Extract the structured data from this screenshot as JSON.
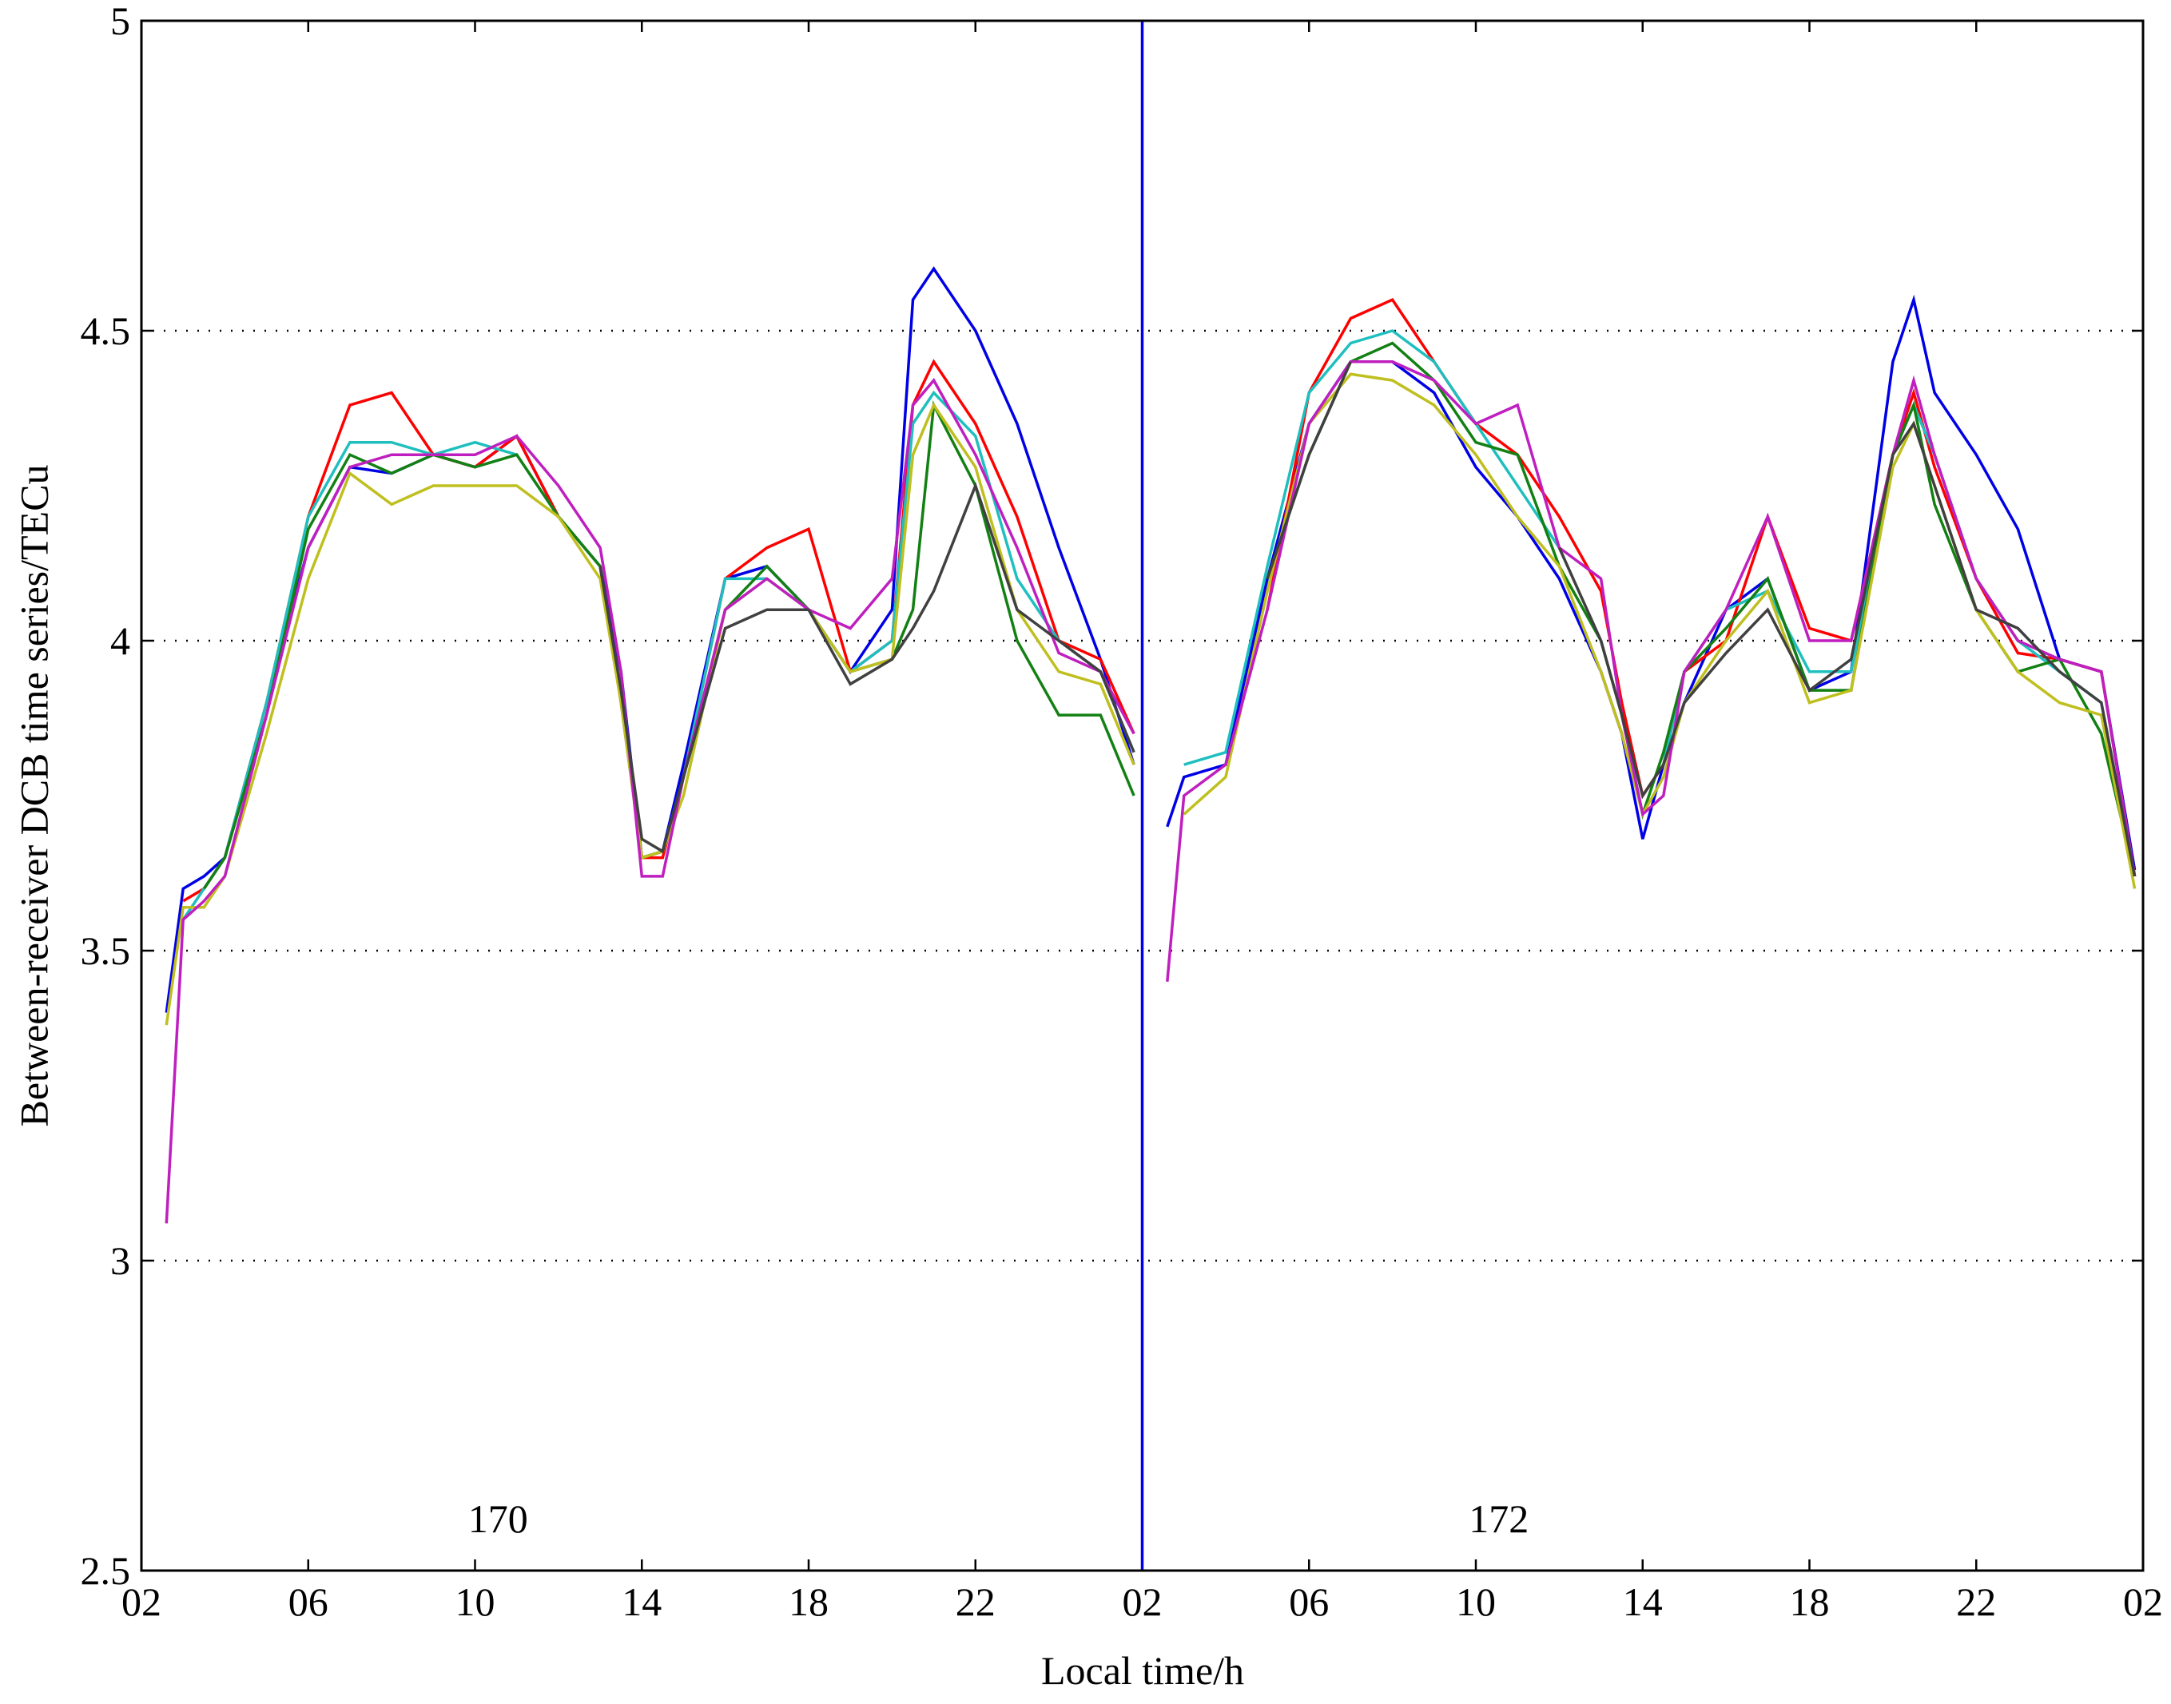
{
  "chart_data": {
    "type": "line",
    "x_label": "Local time/h",
    "y_label": "Between-receiver DCB time series/TECu",
    "annotations": [
      "170",
      "172"
    ],
    "xlim": [
      0,
      48
    ],
    "ylim": [
      2.5,
      5
    ],
    "xticks": [
      {
        "value": 0,
        "label": "02"
      },
      {
        "value": 4,
        "label": "06"
      },
      {
        "value": 8,
        "label": "10"
      },
      {
        "value": 12,
        "label": "14"
      },
      {
        "value": 16,
        "label": "18"
      },
      {
        "value": 20,
        "label": "22"
      },
      {
        "value": 24,
        "label": "02"
      },
      {
        "value": 28,
        "label": "06"
      },
      {
        "value": 32,
        "label": "10"
      },
      {
        "value": 36,
        "label": "14"
      },
      {
        "value": 40,
        "label": "18"
      },
      {
        "value": 44,
        "label": "22"
      },
      {
        "value": 48,
        "label": "02"
      }
    ],
    "yticks": [
      2.5,
      3,
      3.5,
      4,
      4.5,
      5
    ],
    "grid": true,
    "vline": {
      "x": 24,
      "color": "#0000e6"
    },
    "x": [
      0.6,
      1,
      1.5,
      2,
      3,
      4,
      5,
      6,
      7,
      8,
      9,
      10,
      11,
      11.5,
      12,
      12.5,
      13,
      14,
      15,
      16,
      17,
      18,
      18.5,
      19,
      20,
      21,
      22,
      23,
      23.8,
      24,
      24.6,
      25,
      26,
      27,
      28,
      29,
      30,
      31,
      32,
      33,
      34,
      35,
      35.5,
      36,
      36.5,
      37,
      38,
      39,
      40,
      41,
      42,
      42.5,
      43,
      44,
      45,
      46,
      47,
      47.8
    ],
    "series": [
      {
        "color": "#0000e6",
        "values": [
          3.4,
          3.6,
          3.62,
          3.65,
          3.9,
          4.15,
          4.28,
          4.27,
          4.3,
          4.28,
          4.33,
          4.2,
          4.12,
          3.95,
          3.65,
          3.66,
          3.8,
          4.1,
          4.12,
          4.05,
          3.95,
          4.05,
          4.55,
          4.6,
          4.5,
          4.35,
          4.15,
          3.97,
          3.8,
          null,
          3.7,
          3.78,
          3.8,
          4.1,
          4.35,
          4.45,
          4.45,
          4.4,
          4.28,
          4.2,
          4.1,
          3.95,
          3.85,
          3.68,
          3.8,
          3.9,
          4.05,
          4.1,
          3.92,
          3.95,
          4.45,
          4.55,
          4.4,
          4.3,
          4.18,
          3.97,
          3.95,
          3.63
        ]
      },
      {
        "color": "#ff0000",
        "values": [
          null,
          3.58,
          3.6,
          3.65,
          3.9,
          4.2,
          4.38,
          4.4,
          4.3,
          4.28,
          4.33,
          4.2,
          4.12,
          3.9,
          3.65,
          3.65,
          3.78,
          4.1,
          4.15,
          4.18,
          3.95,
          4.0,
          4.38,
          4.45,
          4.35,
          4.2,
          4.0,
          3.97,
          3.85,
          null,
          null,
          null,
          null,
          4.05,
          4.4,
          4.52,
          4.55,
          4.45,
          4.35,
          4.3,
          4.2,
          4.08,
          3.9,
          3.75,
          3.8,
          3.95,
          4.0,
          4.2,
          4.02,
          4.0,
          4.3,
          4.4,
          4.28,
          4.1,
          3.98,
          3.97,
          3.95,
          3.62
        ]
      },
      {
        "color": "#1fbfbf",
        "values": [
          null,
          3.55,
          3.6,
          3.65,
          3.9,
          4.2,
          4.32,
          4.32,
          4.3,
          4.32,
          4.3,
          4.2,
          4.12,
          3.9,
          3.65,
          3.66,
          3.78,
          4.1,
          4.1,
          4.05,
          3.95,
          4.0,
          4.35,
          4.4,
          4.33,
          4.1,
          4.0,
          3.95,
          3.82,
          null,
          null,
          3.8,
          3.82,
          4.12,
          4.4,
          4.48,
          4.5,
          4.45,
          4.35,
          4.25,
          4.15,
          null,
          null,
          null,
          3.8,
          3.95,
          4.05,
          4.08,
          3.95,
          3.95,
          4.3,
          4.38,
          4.3,
          4.1,
          4.0,
          3.95,
          3.9,
          3.62
        ]
      },
      {
        "color": "#138013",
        "values": [
          null,
          null,
          3.6,
          3.65,
          3.88,
          4.18,
          4.3,
          4.27,
          4.3,
          4.28,
          4.3,
          4.2,
          4.12,
          3.92,
          3.65,
          3.66,
          3.78,
          4.05,
          4.12,
          4.05,
          3.95,
          3.97,
          4.05,
          4.38,
          4.25,
          4.0,
          3.88,
          3.88,
          3.75,
          null,
          null,
          null,
          null,
          4.1,
          4.3,
          4.45,
          4.48,
          4.42,
          4.32,
          4.3,
          4.12,
          4.0,
          3.88,
          3.72,
          3.82,
          3.95,
          4.02,
          4.1,
          3.92,
          3.92,
          4.3,
          4.38,
          4.22,
          4.05,
          3.95,
          3.97,
          3.85,
          3.62
        ]
      },
      {
        "color": "#bfbf1f",
        "values": [
          3.38,
          3.57,
          3.57,
          3.62,
          3.85,
          4.1,
          4.27,
          4.22,
          4.25,
          4.25,
          4.25,
          4.2,
          4.1,
          3.9,
          3.65,
          3.66,
          3.75,
          4.05,
          4.1,
          4.05,
          3.95,
          3.97,
          4.3,
          4.38,
          4.28,
          4.05,
          3.95,
          3.93,
          3.8,
          null,
          null,
          3.72,
          3.78,
          4.08,
          4.35,
          4.43,
          4.42,
          4.38,
          4.3,
          4.2,
          4.12,
          3.95,
          3.85,
          3.72,
          3.78,
          3.9,
          4.0,
          4.08,
          3.9,
          3.92,
          4.28,
          4.35,
          4.25,
          4.05,
          3.95,
          3.9,
          3.88,
          3.6
        ]
      },
      {
        "color": "#bf1fbf",
        "values": [
          3.06,
          3.55,
          3.58,
          3.62,
          3.88,
          4.15,
          4.28,
          4.3,
          4.3,
          4.3,
          4.33,
          4.25,
          4.15,
          3.95,
          3.62,
          3.62,
          3.78,
          4.05,
          4.1,
          4.05,
          4.02,
          4.1,
          4.38,
          4.42,
          4.3,
          4.15,
          3.98,
          3.95,
          3.85,
          null,
          3.45,
          3.75,
          3.8,
          4.05,
          4.35,
          4.45,
          4.45,
          4.42,
          4.35,
          4.38,
          4.15,
          4.1,
          3.88,
          3.72,
          3.75,
          3.95,
          4.05,
          4.2,
          4.0,
          4.0,
          4.3,
          4.42,
          4.3,
          4.1,
          4.0,
          3.97,
          3.95,
          3.62
        ]
      },
      {
        "color": "#404040",
        "values": [
          null,
          null,
          null,
          null,
          null,
          null,
          null,
          null,
          null,
          null,
          null,
          null,
          4.12,
          3.92,
          3.68,
          3.66,
          3.78,
          4.02,
          4.05,
          4.05,
          3.93,
          3.97,
          4.02,
          4.08,
          4.25,
          4.05,
          4.0,
          3.95,
          3.82,
          null,
          null,
          null,
          null,
          4.1,
          4.3,
          4.45,
          null,
          null,
          null,
          null,
          4.15,
          4.0,
          3.88,
          3.75,
          3.8,
          3.9,
          3.98,
          4.05,
          3.92,
          3.97,
          4.3,
          4.35,
          4.25,
          4.05,
          4.02,
          3.95,
          3.9,
          3.62
        ]
      }
    ]
  }
}
